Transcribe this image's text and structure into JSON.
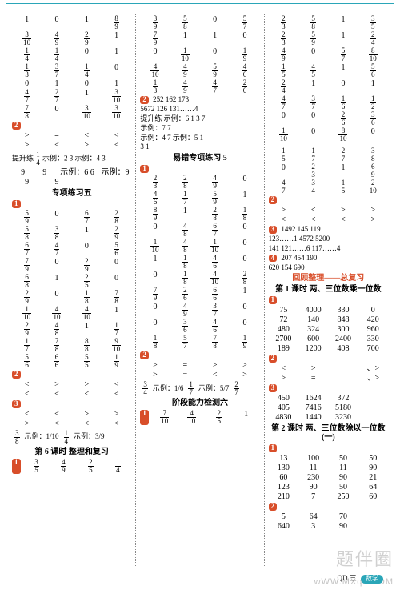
{
  "col1": {
    "grid1": [
      [
        "1",
        "0",
        "1",
        "8/9"
      ],
      [
        "3/10",
        "4/9",
        "2/9",
        "1"
      ],
      [
        "1/4",
        "1/4",
        "0",
        "1"
      ],
      [
        "1/3",
        "3/7",
        "1/4",
        "0"
      ],
      [
        "0",
        "1",
        "0",
        "1"
      ],
      [
        "4/7",
        "2/7",
        "1",
        "3/10"
      ],
      [
        "7/8",
        "0",
        "3/10",
        "3/10"
      ]
    ],
    "badge2": "2",
    "sym_rows1": [
      [
        ">",
        "=",
        "<",
        "<"
      ],
      [
        ">",
        "<",
        ">",
        "<"
      ]
    ],
    "promo1": "提升练",
    "promo_frac": "1/4",
    "promo_ex1": "示例：2 3",
    "promo_ex2": "示例：4 3",
    "row99": [
      [
        "9",
        "9",
        "示例：6 6",
        "示例：9"
      ],
      [
        "9",
        "9",
        "",
        ""
      ]
    ],
    "section5": "专项练习五",
    "badge1": "1",
    "grid2": [
      [
        "5/9",
        "0",
        "6/7",
        "2/8"
      ],
      [
        "5/8",
        "3/8",
        "1",
        "2/9"
      ],
      [
        "6/7",
        "4/7",
        "0",
        "5/6"
      ],
      [
        "7/9",
        "0",
        "2/9",
        "0"
      ],
      [
        "6/8",
        "1",
        "2/5",
        "0"
      ],
      [
        "2/9",
        "0",
        "1/8",
        "7/8"
      ],
      [
        "1/10",
        "4/10",
        "4/10",
        "1"
      ],
      [
        "2/9",
        "4/8",
        "1",
        "1/7"
      ],
      [
        "1/7",
        "7/8",
        "8/8",
        "9/10"
      ],
      [
        "5/6",
        "6/6",
        "5/5",
        "1/9"
      ]
    ],
    "badge2b": "2",
    "sym_rows2": [
      [
        "<",
        ">",
        ">",
        "<"
      ],
      [
        "<",
        "<",
        "<",
        "<"
      ]
    ],
    "badge3": "3",
    "sym_rows3": [
      [
        "<",
        "<",
        ">",
        ">"
      ],
      [
        ">",
        "<",
        "<",
        "<"
      ]
    ],
    "ex_line1": "3/8    示例：1/10  1/4   示例：3/9",
    "section6": "第 6 课时   整理和复习",
    "badge1b": "1",
    "bottom_row": [
      "3/5",
      "4/9",
      "2/5",
      "1/4"
    ]
  },
  "col2": {
    "grid1": [
      [
        "3/9",
        "5/8",
        "0",
        "5/7"
      ],
      [
        "7/9",
        "1",
        "1",
        "0"
      ],
      [
        "0",
        "1/10",
        "0",
        "1/9"
      ],
      [
        "4/10",
        "4/9",
        "5/9",
        "4/6"
      ],
      [
        "1/3",
        "4/9",
        "4/7",
        "2/6"
      ]
    ],
    "badge2": "2",
    "nums_a": "252   162   173",
    "nums_b": "5672  126   131……4",
    "promo": "提升练  示例：6  1  3  7",
    "promo2": "示例：7  7",
    "promo3": "示例：4  7  示例：5 1",
    "promo4": "3  1",
    "section_err": "易错专项练习 5",
    "badge1": "1",
    "grid2": [
      [
        "2/3",
        "2/8",
        "4/9",
        "0"
      ],
      [
        "4/6",
        "1/7",
        "5/9",
        "1"
      ],
      [
        "8/9",
        "1",
        "2/8",
        "1/8"
      ],
      [
        "0",
        "4/8",
        "6/7",
        "0"
      ],
      [
        "1/10",
        "4/8",
        "1/10",
        "0"
      ],
      [
        "1",
        "1/8",
        "4/6",
        "0"
      ],
      [
        "0",
        "1/8",
        "4/10",
        "2/8"
      ],
      [
        "7/9",
        "2/6",
        "6/6",
        "1"
      ],
      [
        "0",
        "4/9",
        "3/7",
        "0"
      ],
      [
        "0",
        "3/6",
        "4/6",
        "0"
      ],
      [
        "1/8",
        "5/7",
        "7/8",
        "1/9"
      ]
    ],
    "badge2b": "2",
    "sym_rows": [
      [
        ">",
        "=",
        ">",
        ">"
      ],
      [
        ">",
        "=",
        "<",
        ">"
      ]
    ],
    "ex_line": "3/4   示例：1/6  1/7  示例：5/7  2/7",
    "section_stage": "阶段能力检测六",
    "badge1b": "1",
    "bottom_row": [
      "7/10",
      "4/10",
      "2/5",
      "1"
    ]
  },
  "col3": {
    "grid1": [
      [
        "2/3",
        "5/8",
        "1",
        "3/5"
      ],
      [
        "2/3",
        "5/9",
        "1",
        "2/4"
      ],
      [
        "4/9",
        "0",
        "5/7",
        "8/10"
      ],
      [
        "1/5",
        "4/5",
        "1",
        "5/6"
      ],
      [
        "2/4",
        "1",
        "0",
        "1"
      ],
      [
        "4/7",
        "3/7",
        "1/6",
        "1/2"
      ],
      [
        "0",
        "0",
        "2/6",
        "3/6"
      ],
      [
        "1/10",
        "0",
        "8/10",
        "0"
      ]
    ],
    "grid1b": [
      [
        "1/5",
        "1/7",
        "2/7",
        "3/8"
      ],
      [
        "0",
        "2/3",
        "1",
        "6/9"
      ],
      [
        "4/7",
        "3/4",
        "1/5",
        "2/10"
      ]
    ],
    "badge2": "2",
    "sym_rows": [
      [
        ">",
        "<",
        ">",
        ">"
      ],
      [
        "<",
        "<",
        "<",
        ">"
      ]
    ],
    "badge3": "3",
    "n3a": "1492    145    119",
    "n3b": "123……1  4572   5200",
    "n3c": "141     121……6 117……4",
    "badge4": "4",
    "n4a": "207   454   190",
    "n4b": "620   154   690",
    "title_review": "回顾整理——总复习",
    "section_a": "第 1 课时  两、三位数乘一位数",
    "badge1": "1",
    "tableA": [
      [
        "75",
        "4000",
        "330",
        "0"
      ],
      [
        "72",
        "140",
        "848",
        "420"
      ],
      [
        "480",
        "324",
        "300",
        "960"
      ],
      [
        "2700",
        "600",
        "2400",
        "330"
      ],
      [
        "189",
        "1200",
        "408",
        "700"
      ]
    ],
    "badge2b": "2",
    "sym_rows2": [
      [
        "<",
        ">",
        "",
        "、>"
      ],
      [
        ">",
        "=",
        "",
        "、>"
      ]
    ],
    "badge3b": "3",
    "tableB": [
      [
        "450",
        "1624",
        "372",
        ""
      ],
      [
        "405",
        "7416",
        "5180",
        ""
      ],
      [
        "4830",
        "1440",
        "3230",
        ""
      ]
    ],
    "section_b": "第 2 课时  两、三位数除以一位数(一)",
    "badge1b": "1",
    "tableC": [
      [
        "13",
        "100",
        "50",
        "50"
      ],
      [
        "130",
        "11",
        "11",
        "90"
      ],
      [
        "60",
        "230",
        "90",
        "21"
      ],
      [
        "123",
        "90",
        "50",
        "64"
      ],
      [
        "210",
        "7",
        "250",
        "60"
      ]
    ],
    "badge2c": "2",
    "tableD": [
      [
        "5",
        "64",
        "70",
        ""
      ],
      [
        "640",
        "3",
        "90",
        ""
      ]
    ]
  },
  "footer": {
    "left": "QD 三",
    "badge": "数学",
    "right": ""
  },
  "watermark": "题伴圈",
  "watermark2": "wWW.MXqE.cOM"
}
